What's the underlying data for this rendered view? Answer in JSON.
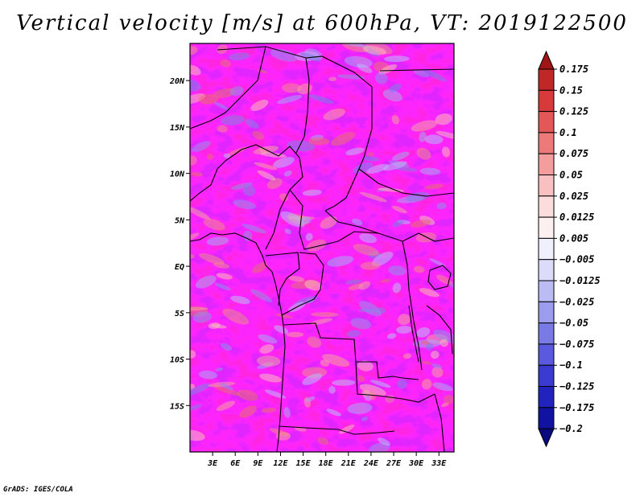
{
  "title": "Vertical velocity [m/s] at 600hPa, VT: 2019122500",
  "footer": "GrADS: IGES/COLA",
  "map": {
    "lon_range": [
      0,
      35
    ],
    "lat_range": [
      -20,
      24
    ],
    "lat_ticks": [
      {
        "value": 20,
        "label": "20N"
      },
      {
        "value": 15,
        "label": "15N"
      },
      {
        "value": 10,
        "label": "10N"
      },
      {
        "value": 5,
        "label": "5N"
      },
      {
        "value": 0,
        "label": "EQ"
      },
      {
        "value": -5,
        "label": "5S"
      },
      {
        "value": -10,
        "label": "10S"
      },
      {
        "value": -15,
        "label": "15S"
      }
    ],
    "lon_ticks": [
      {
        "value": 3,
        "label": "3E"
      },
      {
        "value": 6,
        "label": "6E"
      },
      {
        "value": 9,
        "label": "9E"
      },
      {
        "value": 12,
        "label": "12E"
      },
      {
        "value": 15,
        "label": "15E"
      },
      {
        "value": 18,
        "label": "18E"
      },
      {
        "value": 21,
        "label": "21E"
      },
      {
        "value": 24,
        "label": "24E"
      },
      {
        "value": 27,
        "label": "27E"
      },
      {
        "value": 30,
        "label": "30E"
      },
      {
        "value": 33,
        "label": "33E"
      }
    ]
  },
  "colorbar": {
    "colors": [
      "#a01515",
      "#c02828",
      "#d63a3a",
      "#e25858",
      "#ec7a7a",
      "#f39d9d",
      "#f8c0c0",
      "#fcdcdc",
      "#fdf0f0",
      "#f0f0fd",
      "#dcdcfa",
      "#bcbcf4",
      "#9c9cee",
      "#7a7ae6",
      "#5a5ade",
      "#3a3ad0",
      "#2222bc",
      "#1212a0",
      "#0a0a80"
    ],
    "labels": [
      "0.175",
      "0.15",
      "0.125",
      "0.1",
      "0.075",
      "0.05",
      "0.025",
      "0.0125",
      "0.005",
      "−0.005",
      "−0.0125",
      "−0.025",
      "−0.05",
      "−0.075",
      "−0.1",
      "−0.125",
      "−0.175",
      "−0.2"
    ]
  }
}
